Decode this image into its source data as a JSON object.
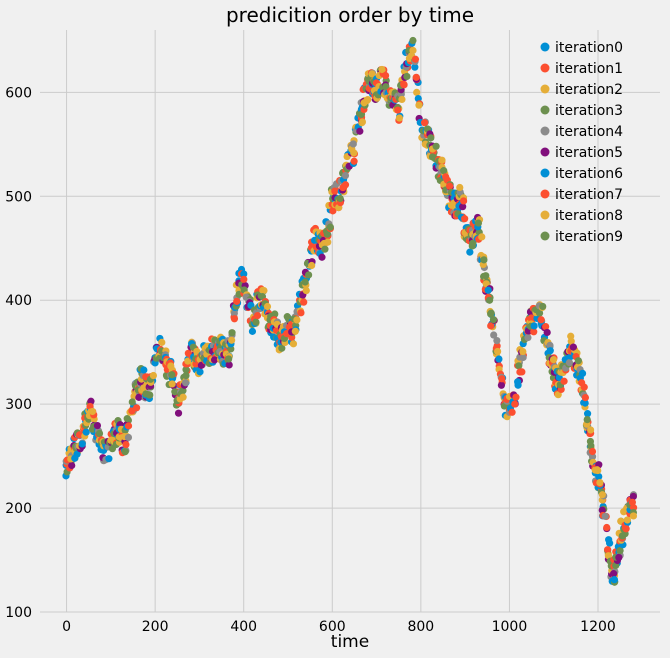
{
  "chart_data": {
    "type": "scatter",
    "title": "predicition order by time",
    "xlabel": "time",
    "ylabel": "",
    "xlim": [
      -60,
      1340
    ],
    "ylim": [
      100,
      660
    ],
    "xticks": [
      0,
      200,
      400,
      600,
      800,
      1000,
      1200
    ],
    "yticks": [
      100,
      200,
      300,
      400,
      500,
      600
    ],
    "grid": true,
    "legend_position": "top-right",
    "series": [
      {
        "name": "iteration0",
        "color": "#008fd5"
      },
      {
        "name": "iteration1",
        "color": "#fc4f30"
      },
      {
        "name": "iteration2",
        "color": "#e5ae38"
      },
      {
        "name": "iteration3",
        "color": "#6d904f"
      },
      {
        "name": "iteration4",
        "color": "#8b8b8b"
      },
      {
        "name": "iteration5",
        "color": "#810f7c"
      },
      {
        "name": "iteration6",
        "color": "#008fd5"
      },
      {
        "name": "iteration7",
        "color": "#fc4f30"
      },
      {
        "name": "iteration8",
        "color": "#e5ae38"
      },
      {
        "name": "iteration9",
        "color": "#6d904f"
      }
    ],
    "trend": [
      [
        0,
        238
      ],
      [
        10,
        250
      ],
      [
        20,
        262
      ],
      [
        30,
        266
      ],
      [
        40,
        275
      ],
      [
        50,
        295
      ],
      [
        60,
        285
      ],
      [
        70,
        270
      ],
      [
        80,
        258
      ],
      [
        90,
        255
      ],
      [
        100,
        262
      ],
      [
        110,
        275
      ],
      [
        120,
        270
      ],
      [
        130,
        262
      ],
      [
        140,
        280
      ],
      [
        150,
        298
      ],
      [
        160,
        315
      ],
      [
        170,
        325
      ],
      [
        180,
        318
      ],
      [
        190,
        316
      ],
      [
        200,
        345
      ],
      [
        210,
        355
      ],
      [
        220,
        345
      ],
      [
        230,
        335
      ],
      [
        240,
        322
      ],
      [
        250,
        300
      ],
      [
        260,
        310
      ],
      [
        270,
        330
      ],
      [
        280,
        350
      ],
      [
        290,
        345
      ],
      [
        300,
        340
      ],
      [
        310,
        345
      ],
      [
        320,
        350
      ],
      [
        330,
        352
      ],
      [
        340,
        355
      ],
      [
        350,
        352
      ],
      [
        360,
        348
      ],
      [
        370,
        350
      ],
      [
        380,
        395
      ],
      [
        390,
        415
      ],
      [
        400,
        420
      ],
      [
        410,
        400
      ],
      [
        420,
        378
      ],
      [
        430,
        395
      ],
      [
        440,
        405
      ],
      [
        450,
        388
      ],
      [
        460,
        380
      ],
      [
        470,
        375
      ],
      [
        480,
        360
      ],
      [
        490,
        368
      ],
      [
        500,
        375
      ],
      [
        510,
        370
      ],
      [
        520,
        385
      ],
      [
        540,
        420
      ],
      [
        550,
        440
      ],
      [
        560,
        460
      ],
      [
        570,
        455
      ],
      [
        580,
        450
      ],
      [
        590,
        470
      ],
      [
        600,
        495
      ],
      [
        610,
        500
      ],
      [
        620,
        505
      ],
      [
        630,
        520
      ],
      [
        640,
        535
      ],
      [
        650,
        545
      ],
      [
        660,
        570
      ],
      [
        670,
        590
      ],
      [
        680,
        605
      ],
      [
        690,
        610
      ],
      [
        700,
        600
      ],
      [
        710,
        615
      ],
      [
        720,
        605
      ],
      [
        730,
        590
      ],
      [
        740,
        600
      ],
      [
        750,
        585
      ],
      [
        760,
        615
      ],
      [
        770,
        630
      ],
      [
        780,
        640
      ],
      [
        790,
        615
      ],
      [
        800,
        570
      ],
      [
        810,
        560
      ],
      [
        820,
        550
      ],
      [
        830,
        545
      ],
      [
        840,
        530
      ],
      [
        850,
        520
      ],
      [
        860,
        505
      ],
      [
        870,
        495
      ],
      [
        880,
        490
      ],
      [
        890,
        500
      ],
      [
        900,
        470
      ],
      [
        910,
        455
      ],
      [
        920,
        465
      ],
      [
        930,
        470
      ],
      [
        940,
        435
      ],
      [
        950,
        410
      ],
      [
        960,
        385
      ],
      [
        970,
        360
      ],
      [
        980,
        325
      ],
      [
        990,
        300
      ],
      [
        1000,
        295
      ],
      [
        1010,
        300
      ],
      [
        1020,
        330
      ],
      [
        1030,
        350
      ],
      [
        1040,
        370
      ],
      [
        1050,
        385
      ],
      [
        1060,
        378
      ],
      [
        1070,
        390
      ],
      [
        1080,
        370
      ],
      [
        1090,
        350
      ],
      [
        1100,
        330
      ],
      [
        1110,
        320
      ],
      [
        1120,
        330
      ],
      [
        1130,
        345
      ],
      [
        1140,
        355
      ],
      [
        1150,
        340
      ],
      [
        1160,
        330
      ],
      [
        1170,
        305
      ],
      [
        1180,
        270
      ],
      [
        1190,
        240
      ],
      [
        1200,
        230
      ],
      [
        1210,
        210
      ],
      [
        1220,
        175
      ],
      [
        1230,
        140
      ],
      [
        1240,
        140
      ],
      [
        1250,
        170
      ],
      [
        1260,
        185
      ],
      [
        1270,
        195
      ],
      [
        1280,
        205
      ]
    ]
  }
}
